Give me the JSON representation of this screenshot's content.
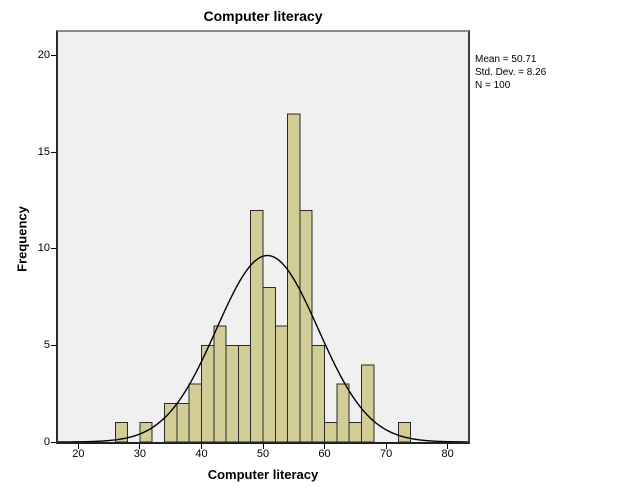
{
  "chart_data": {
    "type": "bar",
    "subtype": "histogram",
    "title": "Computer literacy",
    "xlabel": "Computer literacy",
    "ylabel": "Frequency",
    "bin_start": 26,
    "bin_width": 2,
    "frequencies": [
      1,
      0,
      1,
      0,
      2,
      2,
      3,
      5,
      6,
      5,
      5,
      12,
      8,
      6,
      17,
      12,
      5,
      1,
      3,
      1,
      4,
      0,
      0,
      1
    ],
    "x_ticks": [
      20,
      30,
      40,
      50,
      60,
      70,
      80
    ],
    "y_ticks": [
      0,
      5,
      10,
      15,
      20
    ],
    "xlim": [
      16.69,
      83.31
    ],
    "ylim": [
      0,
      21.24
    ],
    "grid": false,
    "legend": "none",
    "normal_curve": {
      "mean": 50.71,
      "std_dev": 8.26,
      "n": 100
    },
    "stats": {
      "mean": "Mean = 50.71",
      "std_dev": "Std. Dev. = 8.26",
      "n": "N = 100"
    },
    "colors": {
      "bar_fill": "#d2cd96",
      "bar_stroke": "#2a2a2a",
      "curve": "#000000",
      "plot_bg": "#f0f0f0",
      "tick": "#000000",
      "text": "#000000"
    }
  }
}
